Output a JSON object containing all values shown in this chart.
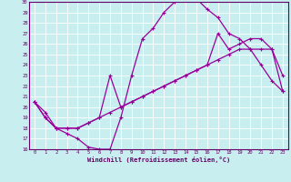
{
  "title": "",
  "xlabel": "Windchill (Refroidissement éolien,°C)",
  "ylabel": "",
  "xlim": [
    -0.5,
    23.5
  ],
  "ylim": [
    16,
    30
  ],
  "xticks": [
    0,
    1,
    2,
    3,
    4,
    5,
    6,
    7,
    8,
    9,
    10,
    11,
    12,
    13,
    14,
    15,
    16,
    17,
    18,
    19,
    20,
    21,
    22,
    23
  ],
  "yticks": [
    16,
    17,
    18,
    19,
    20,
    21,
    22,
    23,
    24,
    25,
    26,
    27,
    28,
    29,
    30
  ],
  "bg_color": "#c8eef0",
  "line_color": "#990099",
  "grid_color": "#ffffff",
  "line1_x": [
    0,
    1,
    2,
    3,
    4,
    5,
    6,
    7,
    8,
    9,
    10,
    11,
    12,
    13,
    14,
    15,
    16,
    17,
    18,
    19,
    20,
    21,
    22,
    23
  ],
  "line1_y": [
    20.5,
    19.5,
    18.0,
    17.5,
    17.0,
    16.2,
    16.0,
    16.0,
    19.0,
    23.0,
    26.5,
    27.5,
    29.0,
    30.0,
    30.2,
    30.3,
    29.3,
    28.5,
    27.0,
    26.5,
    25.5,
    24.0,
    22.5,
    21.5
  ],
  "line2_x": [
    0,
    1,
    2,
    3,
    4,
    5,
    6,
    7,
    8,
    9,
    10,
    11,
    12,
    13,
    14,
    15,
    16,
    17,
    18,
    19,
    20,
    21,
    22,
    23
  ],
  "line2_y": [
    20.5,
    19.0,
    18.0,
    18.0,
    18.0,
    18.5,
    19.0,
    23.0,
    20.0,
    20.5,
    21.0,
    21.5,
    22.0,
    22.5,
    23.0,
    23.5,
    24.0,
    27.0,
    25.5,
    26.0,
    26.5,
    26.5,
    25.5,
    23.0
  ],
  "line3_x": [
    0,
    1,
    2,
    3,
    4,
    5,
    6,
    7,
    8,
    9,
    10,
    11,
    12,
    13,
    14,
    15,
    16,
    17,
    18,
    19,
    20,
    21,
    22,
    23
  ],
  "line3_y": [
    20.5,
    19.0,
    18.0,
    18.0,
    18.0,
    18.5,
    19.0,
    19.5,
    20.0,
    20.5,
    21.0,
    21.5,
    22.0,
    22.5,
    23.0,
    23.5,
    24.0,
    24.5,
    25.0,
    25.5,
    25.5,
    25.5,
    25.5,
    21.5
  ]
}
